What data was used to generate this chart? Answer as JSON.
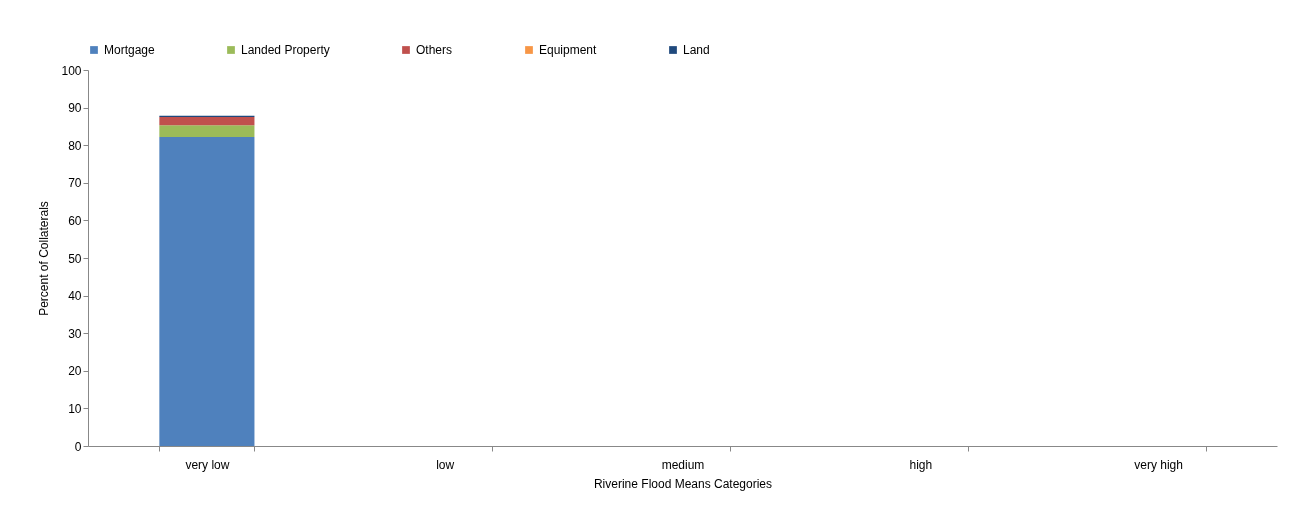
{
  "chart_data": {
    "type": "bar",
    "stacked": true,
    "xlabel": "Riverine Flood Means Categories",
    "ylabel": "Percent of Collaterals",
    "categories": [
      "very low",
      "low",
      "medium",
      "high",
      "very high"
    ],
    "series": [
      {
        "name": "Mortgage",
        "color": "#4f81bd",
        "values": [
          82.2,
          0,
          0,
          0,
          0
        ]
      },
      {
        "name": "Landed Property",
        "color": "#9bbb59",
        "values": [
          3.1,
          0,
          0,
          0,
          0
        ]
      },
      {
        "name": "Others",
        "color": "#c0504d",
        "values": [
          2.2,
          0,
          0,
          0,
          0
        ]
      },
      {
        "name": "Equipment",
        "color": "#f79646",
        "values": [
          0,
          0,
          0,
          0,
          0
        ]
      },
      {
        "name": "Land",
        "color": "#1f497d",
        "values": [
          0.3,
          0,
          0,
          0,
          0
        ]
      }
    ],
    "ylim": [
      0,
      100
    ],
    "yticks": [
      0,
      10,
      20,
      30,
      40,
      50,
      60,
      70,
      80,
      90,
      100
    ],
    "grid": false,
    "legend": "top"
  }
}
